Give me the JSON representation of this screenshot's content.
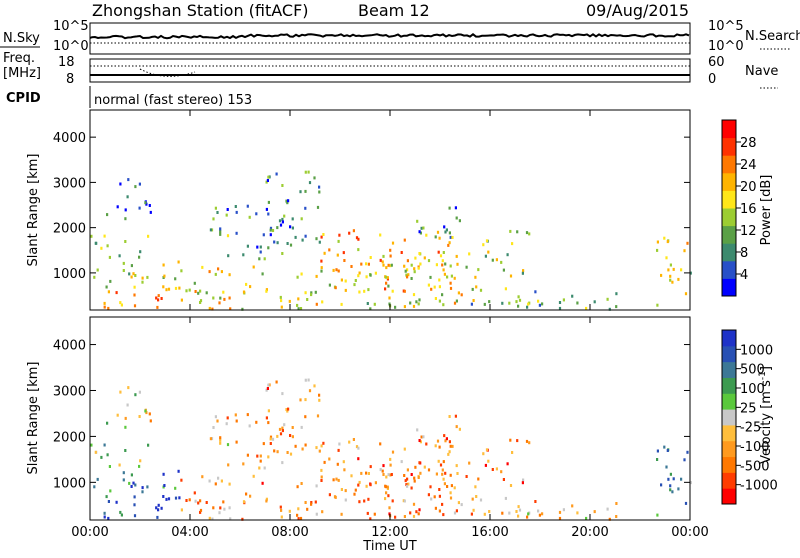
{
  "header": {
    "station": "Zhongshan Station (fitACF)",
    "beam": "Beam 12",
    "date": "09/Aug/2015"
  },
  "strip": {
    "nsky_label": "N.Sky",
    "ticks_left": [
      "10^5",
      "10^0"
    ],
    "ticks_right": [
      "10^5",
      "10^0"
    ],
    "nsearch_label": "N.Search",
    "freq_label_line1": "Freq.",
    "freq_label_line2": "[MHz]",
    "freq_ticks": [
      "18",
      "8"
    ],
    "nave_ticks": [
      "60",
      "0"
    ],
    "nave_label": "Nave",
    "cpid_label": "CPID",
    "cpid_value": "normal (fast stereo) 153"
  },
  "panels": {
    "y_label": "Slant Range [km]",
    "y_ticks": [
      "4000",
      "3000",
      "2000",
      "1000"
    ],
    "x_ticks": [
      "00:00",
      "04:00",
      "08:00",
      "12:00",
      "16:00",
      "20:00",
      "00:00"
    ],
    "x_label": "Time UT"
  },
  "chart_data": [
    {
      "type": "heatmap",
      "x_quantity": "Time UT",
      "x_range": [
        "00:00",
        "24:00"
      ],
      "ylabel": "Slant Range [km]",
      "ylim": [
        180,
        4600
      ],
      "colorbar": {
        "label": "Power [dB]",
        "ticks": [
          "28",
          "24",
          "20",
          "16",
          "12",
          "8",
          "4"
        ],
        "colors": [
          "#0000ff",
          "#2850c8",
          "#3c8a6e",
          "#5aa046",
          "#9ccd32",
          "#ffe619",
          "#ffb400",
          "#ff7800",
          "#ff3200",
          "#ff0000"
        ]
      },
      "blobs": [
        {
          "t": [
            0.0,
            3.6
          ],
          "r": [
            220,
            650
          ],
          "level": 0.7
        },
        {
          "t": [
            0.0,
            3.6
          ],
          "r": [
            650,
            1300
          ],
          "level": 0.5
        },
        {
          "t": [
            0.0,
            2.6
          ],
          "r": [
            1300,
            1900
          ],
          "level": 0.35
        },
        {
          "t": [
            0.5,
            2.4
          ],
          "r": [
            2200,
            3100
          ],
          "level": 0.15
        },
        {
          "t": [
            3.6,
            8.0
          ],
          "r": [
            220,
            1200
          ],
          "level": 0.55
        },
        {
          "t": [
            4.5,
            8.2
          ],
          "r": [
            1300,
            2600
          ],
          "level": 0.3
        },
        {
          "t": [
            7.0,
            9.2
          ],
          "r": [
            1600,
            3300
          ],
          "level": 0.25
        },
        {
          "t": [
            8.0,
            11.2
          ],
          "r": [
            220,
            1100
          ],
          "level": 0.5
        },
        {
          "t": [
            9.2,
            14.4
          ],
          "r": [
            600,
            2000
          ],
          "level": 0.65
        },
        {
          "t": [
            11.0,
            15.6
          ],
          "r": [
            220,
            1400
          ],
          "level": 0.55
        },
        {
          "t": [
            13.0,
            15.0
          ],
          "r": [
            1800,
            2500
          ],
          "level": 0.25
        },
        {
          "t": [
            14.0,
            17.6
          ],
          "r": [
            900,
            2000
          ],
          "level": 0.45
        },
        {
          "t": [
            15.2,
            17.8
          ],
          "r": [
            220,
            800
          ],
          "level": 0.35
        },
        {
          "t": [
            17.0,
            21.8
          ],
          "r": [
            220,
            600
          ],
          "level": 0.4
        },
        {
          "t": [
            22.6,
            24.0
          ],
          "r": [
            300,
            1900
          ],
          "level": 0.5
        }
      ]
    },
    {
      "type": "heatmap",
      "x_quantity": "Time UT",
      "x_range": [
        "00:00",
        "24:00"
      ],
      "ylabel": "Slant Range [km]",
      "ylim": [
        180,
        4600
      ],
      "colorbar": {
        "label": "Velocity [m s^-1]",
        "ticks": [
          "1000",
          "500",
          "100",
          "25",
          "-25",
          "-100",
          "-500",
          "-1000"
        ],
        "colors": [
          "#ff0000",
          "#ff3c00",
          "#ff7800",
          "#ff9a1e",
          "#ffbe3c",
          "#c8c8c8",
          "#5ac83c",
          "#3c9a50",
          "#3c7896",
          "#2850b4",
          "#1e32c8"
        ]
      },
      "blobs": [
        {
          "t": [
            0.0,
            3.6
          ],
          "r": [
            220,
            650
          ],
          "level": 0.85
        },
        {
          "t": [
            0.0,
            3.6
          ],
          "r": [
            650,
            1300
          ],
          "level": 0.8
        },
        {
          "t": [
            0.0,
            2.6
          ],
          "r": [
            1300,
            1900
          ],
          "level": 0.55
        },
        {
          "t": [
            0.5,
            2.4
          ],
          "r": [
            2200,
            3100
          ],
          "level": 0.45
        },
        {
          "t": [
            3.6,
            8.0
          ],
          "r": [
            220,
            1200
          ],
          "level": 0.3
        },
        {
          "t": [
            4.5,
            8.2
          ],
          "r": [
            1300,
            2600
          ],
          "level": 0.35
        },
        {
          "t": [
            7.0,
            9.2
          ],
          "r": [
            1600,
            3300
          ],
          "level": 0.3
        },
        {
          "t": [
            8.0,
            11.2
          ],
          "r": [
            220,
            1100
          ],
          "level": 0.3
        },
        {
          "t": [
            9.2,
            14.4
          ],
          "r": [
            600,
            2000
          ],
          "level": 0.25
        },
        {
          "t": [
            11.0,
            15.6
          ],
          "r": [
            220,
            1400
          ],
          "level": 0.3
        },
        {
          "t": [
            13.0,
            15.0
          ],
          "r": [
            1800,
            2500
          ],
          "level": 0.3
        },
        {
          "t": [
            14.0,
            17.6
          ],
          "r": [
            900,
            2000
          ],
          "level": 0.25
        },
        {
          "t": [
            15.2,
            17.8
          ],
          "r": [
            220,
            800
          ],
          "level": 0.35
        },
        {
          "t": [
            17.0,
            21.8
          ],
          "r": [
            220,
            600
          ],
          "level": 0.4
        },
        {
          "t": [
            22.6,
            24.0
          ],
          "r": [
            300,
            1900
          ],
          "level": 0.7
        }
      ]
    }
  ]
}
